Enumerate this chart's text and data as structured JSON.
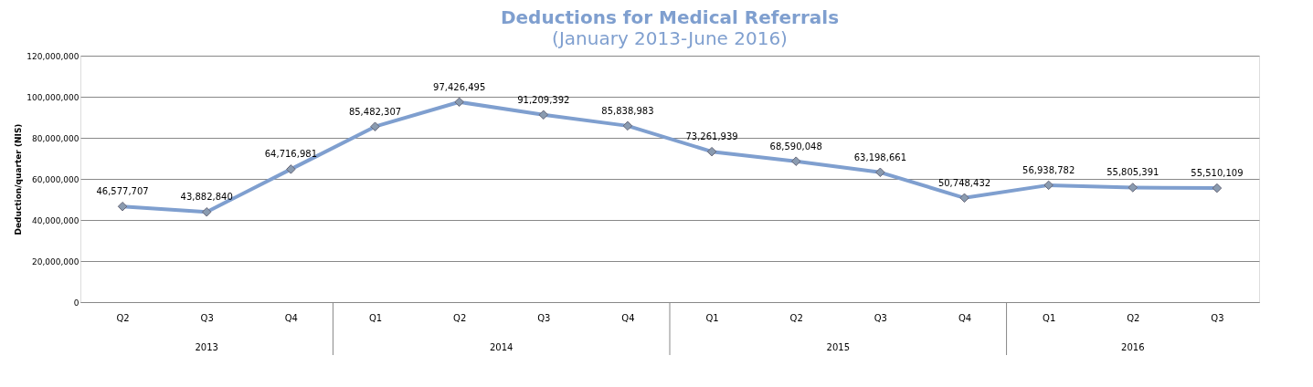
{
  "chart_data": {
    "type": "line",
    "title": "Deductions for Medical Referrals",
    "subtitle": "(January 2013-June 2016)",
    "ylabel": "Deduction/quarter (NIS)",
    "categories": [
      "Q2",
      "Q3",
      "Q4",
      "Q1",
      "Q2",
      "Q3",
      "Q4",
      "Q1",
      "Q2",
      "Q3",
      "Q4",
      "Q1",
      "Q2",
      "Q3"
    ],
    "series": [
      {
        "color": "#7f9fcf",
        "values": [
          46577707,
          43882840,
          64716981,
          85482307,
          97426495,
          91209392,
          85838983,
          73261939,
          68590048,
          63198661,
          50748432,
          56938782,
          55805391,
          55510109
        ],
        "value_labels": [
          "46,577,707",
          "43,882,840",
          "64,716,981",
          "85,482,307",
          "97,426,495",
          "91,209,392",
          "85,838,983",
          "73,261,939",
          "68,590,048",
          "63,198,661",
          "50,748,432",
          "56,938,782",
          "55,805,391",
          "55,510,109"
        ]
      }
    ],
    "ylim": [
      0,
      120000000
    ],
    "yticks": [
      0,
      {
        "value": 20000000,
        "label": "20,000,000"
      },
      {
        "value": 40000000,
        "label": "40,000,000"
      },
      {
        "value": 60000000,
        "label": "60,000,000"
      },
      {
        "value": 80000000,
        "label": "80,000,000"
      },
      {
        "value": 100000000,
        "label": "100,000,000"
      },
      {
        "value": 120000000,
        "label": "120,000,000"
      }
    ],
    "grid": "y",
    "marker": "diamond",
    "line_style": "solid",
    "annotations": [
      "2013",
      "2014",
      "2015",
      "2016"
    ]
  }
}
